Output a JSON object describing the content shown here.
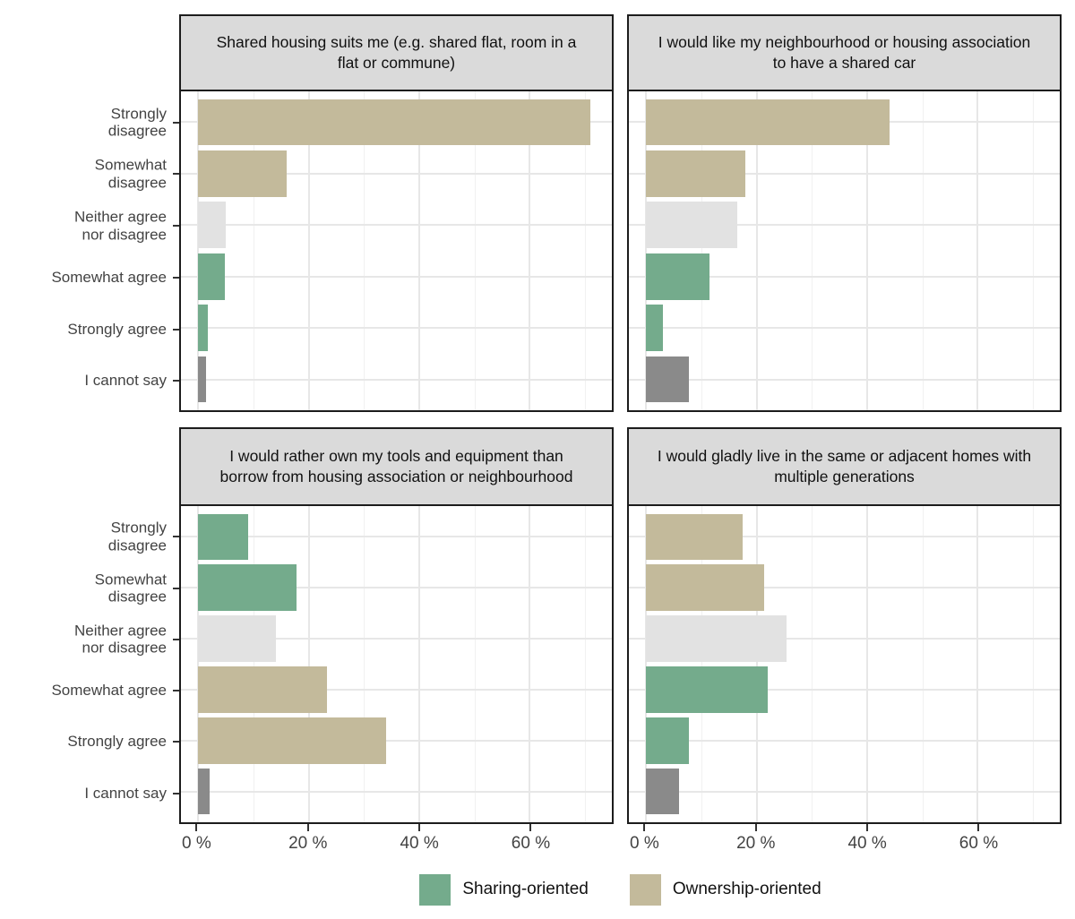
{
  "chart_data": {
    "type": "bar",
    "orientation": "horizontal",
    "facets": 4,
    "categories": [
      "Strongly\ndisagree",
      "Somewhat\ndisagree",
      "Neither agree\nnor disagree",
      "Somewhat agree",
      "Strongly agree",
      "I cannot say"
    ],
    "x_tick_labels": [
      "0 %",
      "20 %",
      "40 %",
      "60 %"
    ],
    "x_tick_values": [
      0,
      20,
      40,
      60
    ],
    "x_minor_values": [
      10,
      30,
      50,
      70
    ],
    "xlim": [
      0,
      74.5
    ],
    "grid": "major and minor vertical, major horizontal at category centers",
    "legend_position": "bottom",
    "legend": [
      {
        "key": "sharing",
        "label": "Sharing-oriented",
        "color": "#74AB8C"
      },
      {
        "key": "ownership",
        "label": "Ownership-oriented",
        "color": "#C3BA9B"
      }
    ],
    "colors": {
      "sharing": "#74AB8C",
      "ownership": "#C3BA9B",
      "neutral": "#E2E2E2",
      "cannot_say": "#8A8A8A"
    },
    "panels": [
      {
        "title": "Shared housing suits me (e.g. shared flat, room in a flat or commune)",
        "values": [
          71,
          16,
          5,
          4.8,
          1.8,
          1.5
        ],
        "series_keys": [
          "ownership",
          "ownership",
          "neutral",
          "sharing",
          "sharing",
          "cannot_say"
        ]
      },
      {
        "title": "I would like my neighbourhood or housing association to have a shared car",
        "values": [
          44,
          18,
          16.5,
          11.5,
          3,
          7.8
        ],
        "series_keys": [
          "ownership",
          "ownership",
          "neutral",
          "sharing",
          "sharing",
          "cannot_say"
        ]
      },
      {
        "title": "I would rather own my tools and equipment than borrow from housing association or neighbourhood",
        "values": [
          9,
          17.8,
          14,
          23.3,
          34,
          2
        ],
        "series_keys": [
          "sharing",
          "sharing",
          "neutral",
          "ownership",
          "ownership",
          "cannot_say"
        ]
      },
      {
        "title": "I would gladly live in the same or adjacent homes with multiple generations",
        "values": [
          17.4,
          21.3,
          25.5,
          22,
          7.7,
          6
        ],
        "series_keys": [
          "ownership",
          "ownership",
          "neutral",
          "sharing",
          "sharing",
          "cannot_say"
        ]
      }
    ]
  },
  "theme": {
    "strip_background": "#DADADA",
    "panel_border": "#1C1C1C",
    "grid_major": "#E7E7E7",
    "grid_minor": "#F1F1F1",
    "axis_text": "#434343",
    "tick_mark": "#333333",
    "background": "#FFFFFF"
  }
}
